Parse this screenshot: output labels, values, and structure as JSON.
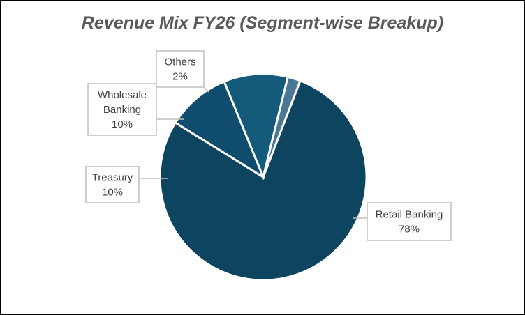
{
  "chart_data": {
    "type": "pie",
    "title": "Revenue Mix FY26 (Segment-wise Breakup)",
    "slices": [
      {
        "label_lines": [
          "Retail Banking"
        ],
        "value": 78,
        "value_label": "78%",
        "color": "#0d4460"
      },
      {
        "label_lines": [
          "Treasury"
        ],
        "value": 10,
        "value_label": "10%",
        "color": "#0f4c6d"
      },
      {
        "label_lines": [
          "Wholesale",
          "Banking"
        ],
        "value": 10,
        "value_label": "10%",
        "color": "#145a7a"
      },
      {
        "label_lines": [
          "Others"
        ],
        "value": 2,
        "value_label": "2%",
        "color": "#4a7793"
      }
    ],
    "legend": "none"
  }
}
